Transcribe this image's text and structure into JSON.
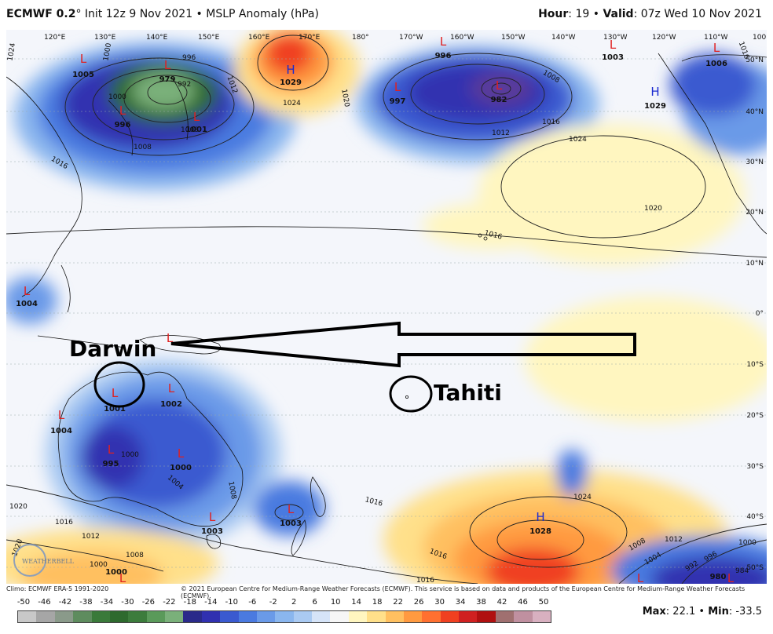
{
  "header": {
    "model": "ECMWF 0.2",
    "degree": "°",
    "init": " Init 12z 9 Nov 2021 • MSLP Anomaly (hPa)",
    "hour_label": "Hour",
    "hour_value": ": 19 • ",
    "valid_label": "Valid",
    "valid_value": ": 07z Wed 10 Nov 2021"
  },
  "map": {
    "lon_labels": [
      "120°E",
      "130°E",
      "140°E",
      "150°E",
      "160°E",
      "170°E",
      "180°",
      "170°W",
      "160°W",
      "150°W",
      "140°W",
      "130°W",
      "120°W",
      "110°W",
      "100"
    ],
    "lat_labels": [
      "50°N",
      "40°N",
      "30°N",
      "20°N",
      "10°N",
      "0°",
      "10°S",
      "20°S",
      "30°S",
      "40°S",
      "50°S"
    ],
    "pressure_centers": [
      {
        "type": "L",
        "value": "1005"
      },
      {
        "type": "L",
        "value": "979"
      },
      {
        "type": "L",
        "value": "996"
      },
      {
        "type": "L",
        "value": "1001"
      },
      {
        "type": "H",
        "value": "1029"
      },
      {
        "type": "L",
        "value": "997"
      },
      {
        "type": "L",
        "value": "996"
      },
      {
        "type": "L",
        "value": "982"
      },
      {
        "type": "L",
        "value": "1003"
      },
      {
        "type": "L",
        "value": "1006"
      },
      {
        "type": "H",
        "value": "1029"
      },
      {
        "type": "L",
        "value": "1004"
      },
      {
        "type": "L",
        "value": "1001"
      },
      {
        "type": "L",
        "value": "1002"
      },
      {
        "type": "L",
        "value": "1004"
      },
      {
        "type": "L",
        "value": "995"
      },
      {
        "type": "L",
        "value": "1000"
      },
      {
        "type": "L",
        "value": "1003"
      },
      {
        "type": "L",
        "value": "1003"
      },
      {
        "type": "H",
        "value": "1028"
      },
      {
        "type": "L",
        "value": ""
      },
      {
        "type": "L",
        "value": "980"
      },
      {
        "type": "L",
        "value": "1000"
      },
      {
        "type": "L",
        "value": ""
      }
    ],
    "isobar_labels": [
      "1024",
      "1000",
      "1000",
      "1008",
      "996",
      "992",
      "1012",
      "1016",
      "1008",
      "1024",
      "1020",
      "1008",
      "1012",
      "1016",
      "1024",
      "1016",
      "1020",
      "1016",
      "1000",
      "1004",
      "1008",
      "1016",
      "1024",
      "1020",
      "1016",
      "1012",
      "1008",
      "1000",
      "1020",
      "1016",
      "1016",
      "1012",
      "1008",
      "1004",
      "992",
      "996",
      "984",
      "1000"
    ],
    "annotations": {
      "darwin": "Darwin",
      "tahiti": "Tahiti"
    },
    "watermark": "WEATHERBELL"
  },
  "footer": {
    "climo": "Climo: ECMWF ERA-5 1991-2020",
    "copyright": "© 2021 European Centre for Medium-Range Weather Forecasts (ECMWF). This service is based on data and products of the European Centre for Medium-Range Weather Forecasts (ECMWF)."
  },
  "legend": {
    "ticks": [
      "-50",
      "-46",
      "-42",
      "-38",
      "-34",
      "-30",
      "-26",
      "-22",
      "-18",
      "-14",
      "-10",
      "-6",
      "-2",
      "2",
      "6",
      "10",
      "14",
      "18",
      "22",
      "26",
      "30",
      "34",
      "38",
      "42",
      "46",
      "50"
    ],
    "colors": [
      "#c8c8c8",
      "#a6a6a6",
      "#8a9a8a",
      "#5e8c5e",
      "#3a7a3a",
      "#2e6a2e",
      "#3c7c3c",
      "#5a9a5a",
      "#7ab07a",
      "#2a2a8a",
      "#3030b0",
      "#3a5ad0",
      "#4a7ae0",
      "#6a9ae8",
      "#8ab6ee",
      "#aacaf2",
      "#d6e4f8",
      "#f6f6f6",
      "#fff6c0",
      "#ffe08a",
      "#ffc060",
      "#ff9a40",
      "#ff7030",
      "#f04020",
      "#d02020",
      "#b01010",
      "#a07070",
      "#c090a0",
      "#d8b0c0"
    ],
    "max_label": "Max",
    "max_value": ": 22.1 • ",
    "min_label": "Min",
    "min_value": ": -33.5"
  }
}
